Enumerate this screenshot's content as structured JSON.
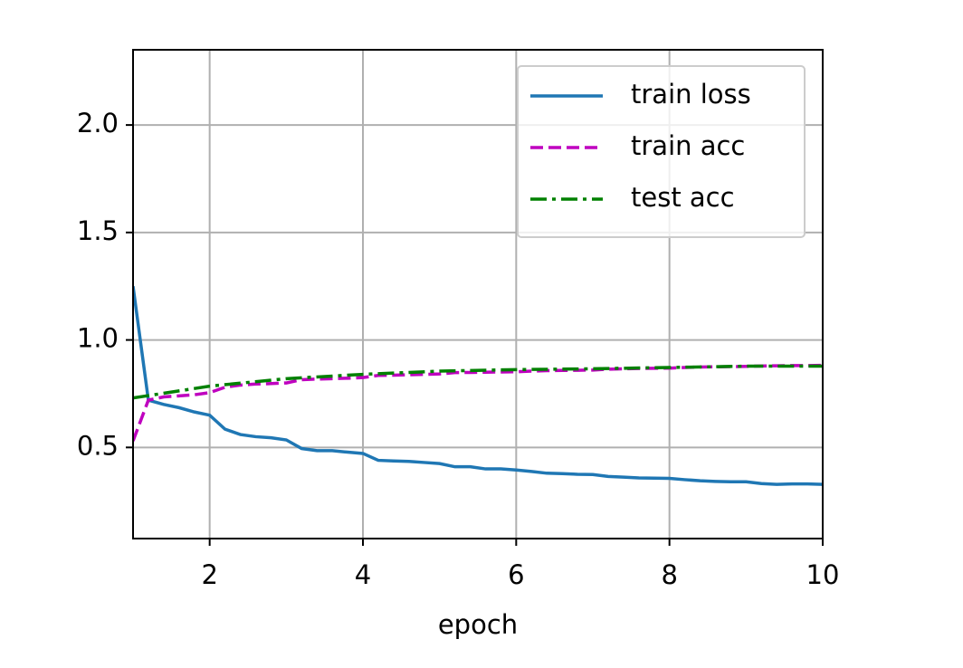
{
  "chart_data": {
    "type": "line",
    "xlabel": "epoch",
    "xlim": [
      1,
      10
    ],
    "ylim": [
      0.076,
      2.35
    ],
    "xticks": [
      2,
      4,
      6,
      8,
      10
    ],
    "yticks": [
      0.5,
      {
        "value": 1,
        "label": "1.0"
      },
      1.5,
      {
        "value": 2,
        "label": "2.0"
      }
    ],
    "grid": true,
    "legend": "upper right",
    "series": [
      {
        "name": "train loss",
        "color": "#1f77b4",
        "linestyle": "solid",
        "x": [
          1,
          1.2,
          1.4,
          1.6,
          1.8,
          2,
          2.2,
          2.4,
          2.6,
          2.8,
          3,
          3.2,
          3.4,
          3.6,
          3.8,
          4,
          4.2,
          4.4,
          4.6,
          4.8,
          5,
          5.2,
          5.4,
          5.6,
          5.8,
          6,
          6.2,
          6.4,
          6.6,
          6.8,
          7,
          7.2,
          7.4,
          7.6,
          7.8,
          8,
          8.2,
          8.4,
          8.6,
          8.8,
          9,
          9.2,
          9.4,
          9.6,
          9.8,
          10
        ],
        "values": [
          1.25,
          0.72,
          0.7,
          0.685,
          0.665,
          0.65,
          0.585,
          0.56,
          0.55,
          0.545,
          0.535,
          0.495,
          0.485,
          0.485,
          0.478,
          0.472,
          0.44,
          0.437,
          0.435,
          0.43,
          0.425,
          0.41,
          0.41,
          0.4,
          0.4,
          0.395,
          0.388,
          0.38,
          0.378,
          0.375,
          0.374,
          0.365,
          0.362,
          0.358,
          0.357,
          0.356,
          0.35,
          0.345,
          0.342,
          0.34,
          0.34,
          0.332,
          0.328,
          0.33,
          0.33,
          0.328
        ]
      },
      {
        "name": "train acc",
        "color": "#bf00bf",
        "linestyle": "dashed",
        "x": [
          1,
          1.2,
          1.4,
          1.6,
          1.8,
          2,
          2.2,
          2.4,
          2.6,
          2.8,
          3,
          3.2,
          3.4,
          3.6,
          3.8,
          4,
          4.2,
          4.4,
          4.6,
          4.8,
          5,
          5.2,
          5.4,
          5.6,
          5.8,
          6,
          6.2,
          6.4,
          6.6,
          6.8,
          7,
          7.2,
          7.4,
          7.6,
          7.8,
          8,
          8.2,
          8.4,
          8.6,
          8.8,
          9,
          9.2,
          9.4,
          9.6,
          9.8,
          10
        ],
        "values": [
          0.53,
          0.72,
          0.735,
          0.74,
          0.745,
          0.755,
          0.78,
          0.79,
          0.795,
          0.797,
          0.8,
          0.815,
          0.818,
          0.82,
          0.822,
          0.825,
          0.835,
          0.836,
          0.838,
          0.84,
          0.842,
          0.848,
          0.849,
          0.85,
          0.851,
          0.852,
          0.855,
          0.857,
          0.858,
          0.859,
          0.86,
          0.864,
          0.866,
          0.867,
          0.868,
          0.869,
          0.872,
          0.874,
          0.875,
          0.876,
          0.877,
          0.879,
          0.88,
          0.881,
          0.881,
          0.882
        ]
      },
      {
        "name": "test acc",
        "color": "#008000",
        "linestyle": "dashdot",
        "x": [
          1,
          2,
          3,
          4,
          5,
          6,
          7,
          8,
          9,
          10
        ],
        "values": [
          0.73,
          0.785,
          0.82,
          0.84,
          0.855,
          0.862,
          0.866,
          0.872,
          0.878,
          0.878
        ]
      }
    ]
  }
}
